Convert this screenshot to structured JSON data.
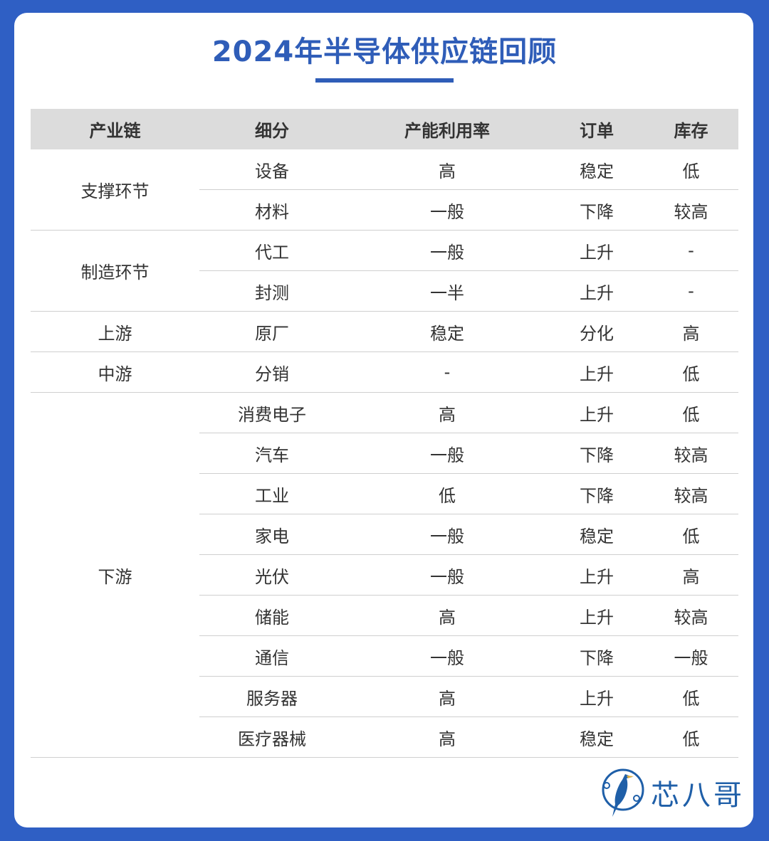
{
  "title": "2024年半导体供应链回顾",
  "headers": [
    "产业链",
    "细分",
    "产能利用率",
    "订单",
    "库存"
  ],
  "groups": [
    {
      "chain": "支撑环节",
      "rows": [
        [
          "设备",
          "高",
          "稳定",
          "低"
        ],
        [
          "材料",
          "一般",
          "下降",
          "较高"
        ]
      ]
    },
    {
      "chain": "制造环节",
      "rows": [
        [
          "代工",
          "一般",
          "上升",
          "-"
        ],
        [
          "封测",
          "一半",
          "上升",
          "-"
        ]
      ]
    },
    {
      "chain": "上游",
      "rows": [
        [
          "原厂",
          "稳定",
          "分化",
          "高"
        ]
      ]
    },
    {
      "chain": "中游",
      "rows": [
        [
          "分销",
          "-",
          "上升",
          "低"
        ]
      ]
    },
    {
      "chain": "下游",
      "rows": [
        [
          "消费电子",
          "高",
          "上升",
          "低"
        ],
        [
          "汽车",
          "一般",
          "下降",
          "较高"
        ],
        [
          "工业",
          "低",
          "下降",
          "较高"
        ],
        [
          "家电",
          "一般",
          "稳定",
          "低"
        ],
        [
          "光伏",
          "一般",
          "上升",
          "高"
        ],
        [
          "储能",
          "高",
          "上升",
          "较高"
        ],
        [
          "通信",
          "一般",
          "下降",
          "一般"
        ],
        [
          "服务器",
          "高",
          "上升",
          "低"
        ],
        [
          "医疗器械",
          "高",
          "稳定",
          "低"
        ]
      ]
    }
  ],
  "logo": {
    "text": "芯八哥",
    "icon": "bird-logo-icon"
  },
  "colors": {
    "accent": "#2f5db8",
    "frame": "#2f5fc4",
    "header_bg": "#dcdcdc"
  }
}
